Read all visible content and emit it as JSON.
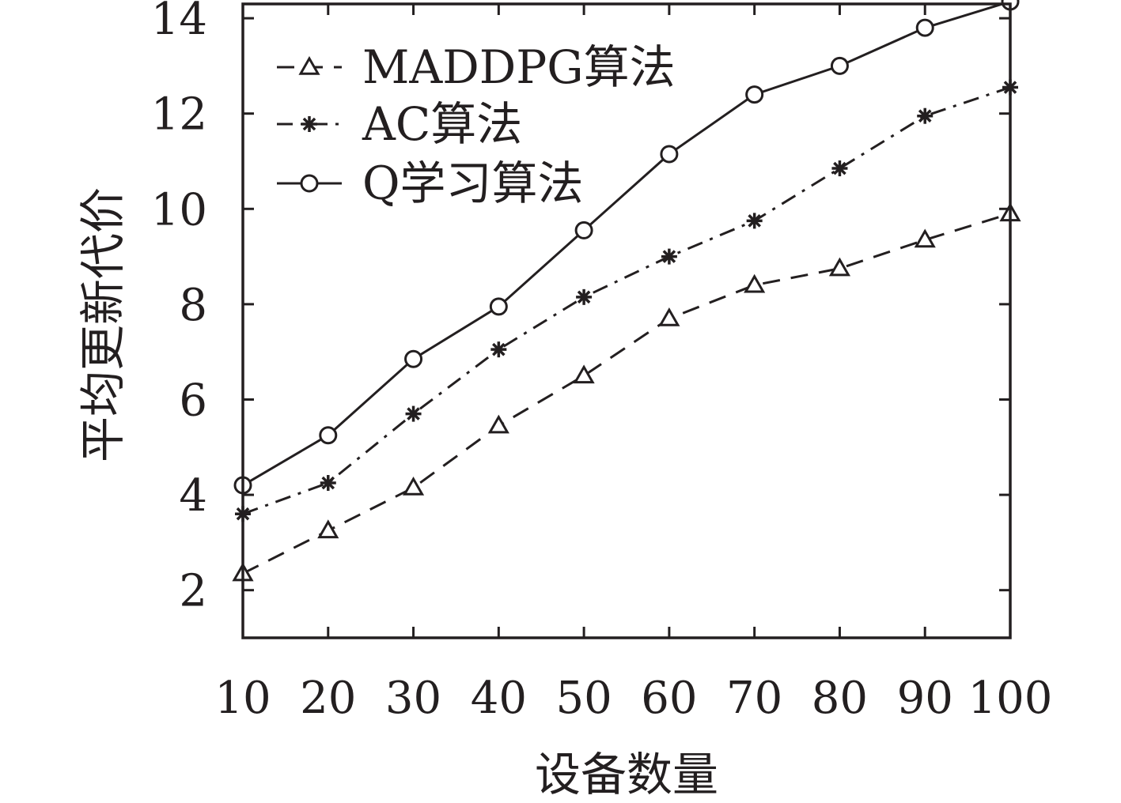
{
  "chart_data": {
    "type": "line",
    "xlabel": "设备数量",
    "ylabel": "平均更新代价",
    "x": [
      10,
      20,
      30,
      40,
      50,
      60,
      70,
      80,
      90,
      100
    ],
    "xlim": [
      10,
      100
    ],
    "ylim": [
      1,
      14.3
    ],
    "xticks": [
      "10",
      "20",
      "30",
      "40",
      "50",
      "60",
      "70",
      "80",
      "90",
      "100"
    ],
    "yticks": [
      "2",
      "4",
      "6",
      "8",
      "10",
      "12",
      "14"
    ],
    "grid": false,
    "legend_position": "top-left",
    "series": [
      {
        "name": "MADDPG算法",
        "marker": "triangle",
        "line_style": "dashed",
        "color": "#231f20",
        "values": [
          2.35,
          3.25,
          4.15,
          5.45,
          6.5,
          7.7,
          8.4,
          8.75,
          9.35,
          9.9
        ]
      },
      {
        "name": "AC算法",
        "marker": "asterisk",
        "line_style": "dash-dot",
        "color": "#231f20",
        "values": [
          3.6,
          4.25,
          5.7,
          7.05,
          8.15,
          9.0,
          9.75,
          10.85,
          11.95,
          12.55
        ]
      },
      {
        "name": "Q学习算法",
        "marker": "circle",
        "line_style": "solid",
        "color": "#231f20",
        "values": [
          4.2,
          5.25,
          6.85,
          7.95,
          9.55,
          11.15,
          12.4,
          13.0,
          13.8,
          14.35
        ]
      }
    ]
  }
}
